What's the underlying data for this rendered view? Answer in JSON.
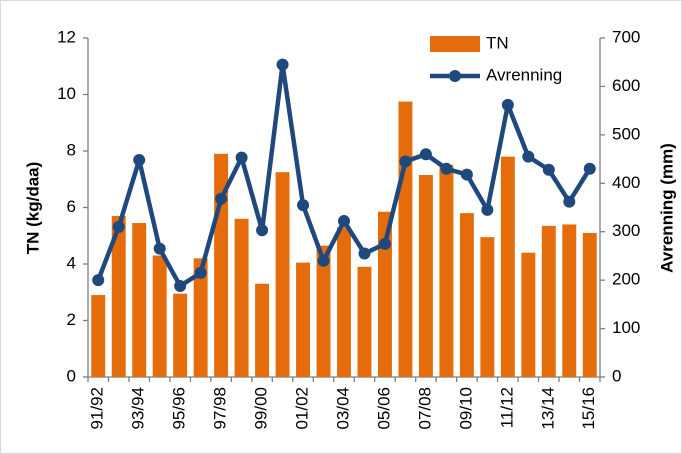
{
  "chart_data": {
    "type": "bar",
    "y_label": "TN (kg/daa)",
    "y2_label": "Avrenning (mm)",
    "categories": [
      "91/92",
      null,
      "93/94",
      null,
      "95/96",
      null,
      "97/98",
      null,
      "99/00",
      null,
      "01/02",
      null,
      "03/04",
      null,
      "05/06",
      null,
      "07/08",
      null,
      "09/10",
      null,
      "11/12",
      null,
      "13/14",
      null,
      "15/16"
    ],
    "series": [
      {
        "name": "TN",
        "type": "bar",
        "color": "#e46c0a",
        "values": [
          2.9,
          5.7,
          5.45,
          4.3,
          2.95,
          4.2,
          7.9,
          5.6,
          3.3,
          7.25,
          4.05,
          4.65,
          5.3,
          3.9,
          5.85,
          9.75,
          7.15,
          7.5,
          5.8,
          4.95,
          7.8,
          4.4,
          5.35,
          5.4,
          5.1
        ]
      },
      {
        "name": "Avrenning",
        "type": "line",
        "axis": "y2",
        "color": "#1f497d",
        "values": [
          200,
          310,
          448,
          265,
          188,
          215,
          368,
          453,
          303,
          645,
          355,
          240,
          322,
          255,
          275,
          445,
          460,
          430,
          418,
          345,
          562,
          455,
          428,
          362,
          430
        ]
      }
    ],
    "ylim": [
      0,
      12
    ],
    "yticks": [
      0,
      2,
      4,
      6,
      8,
      10,
      12
    ],
    "y2lim": [
      0,
      700
    ],
    "y2ticks": [
      0,
      100,
      200,
      300,
      400,
      500,
      600,
      700
    ],
    "legend": "top-right"
  }
}
